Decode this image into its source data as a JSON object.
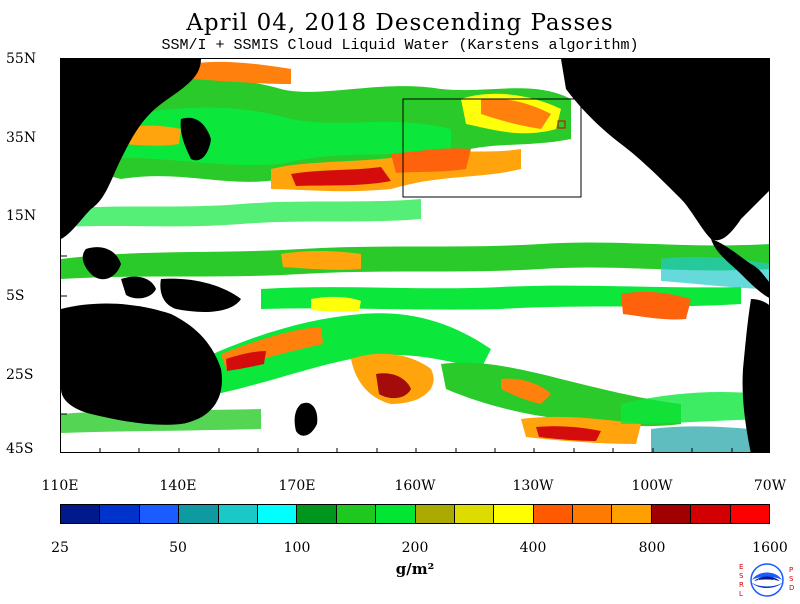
{
  "title": "April 04, 2018  Descending Passes",
  "subtitle": "SSM/I + SSMIS Cloud Liquid Water (Karstens algorithm)",
  "map": {
    "lat_labels": [
      "55N",
      "35N",
      "15N",
      "5S",
      "25S",
      "45S"
    ],
    "lon_labels": [
      "110E",
      "140E",
      "170E",
      "160W",
      "130W",
      "100W",
      "70W"
    ],
    "land_color": "#000000",
    "no_cloud_color": "#ffffff"
  },
  "colorbar": {
    "colors": [
      "#001a8c",
      "#0033cc",
      "#1a5cff",
      "#0e9aa0",
      "#1ac8c8",
      "#00ffff",
      "#00961e",
      "#1ec81e",
      "#00e632",
      "#aaaa00",
      "#dcdc00",
      "#ffff00",
      "#ff5a00",
      "#ff7a00",
      "#ffa000",
      "#a00000",
      "#d20000",
      "#ff0000"
    ],
    "tick_labels": [
      "25",
      "50",
      "100",
      "200",
      "400",
      "800",
      "1600"
    ],
    "units": "g/m²"
  },
  "logo": {
    "left_text": "ESRL",
    "right_text": "PSD",
    "center_text": "NOAA"
  }
}
